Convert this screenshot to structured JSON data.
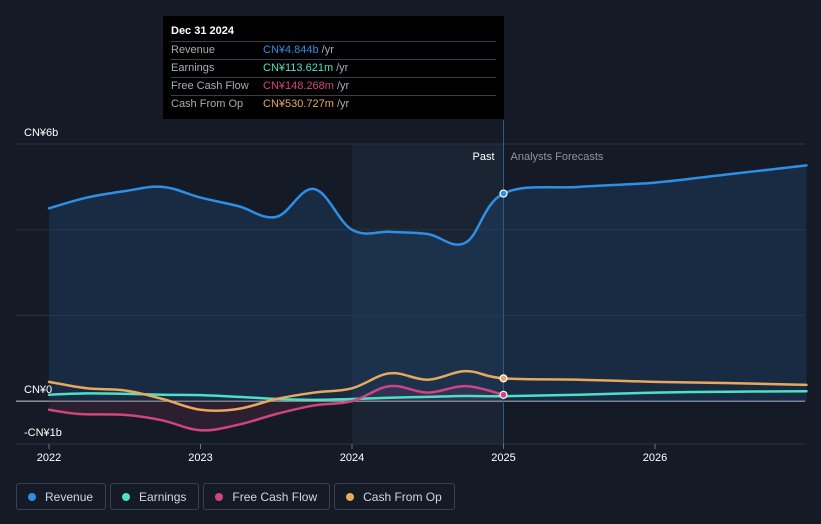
{
  "chart_data": {
    "type": "line",
    "y_labels": {
      "top": "CN¥6b",
      "zero": "CN¥0",
      "bottom": "-CN¥1b"
    },
    "ylim": [
      -1,
      6
    ],
    "x_ticks": [
      "2022",
      "2023",
      "2024",
      "2025",
      "2026"
    ],
    "past_label": "Past",
    "forecast_label": "Analysts Forecasts",
    "divider_x": 2025.0,
    "past_start_x": 2024.0,
    "series": [
      {
        "name": "Revenue",
        "color": "#2d8fe6",
        "fill": true,
        "points": [
          [
            2022,
            4.5
          ],
          [
            2022.25,
            4.75
          ],
          [
            2022.5,
            4.9
          ],
          [
            2022.75,
            5.0
          ],
          [
            2023,
            4.75
          ],
          [
            2023.25,
            4.55
          ],
          [
            2023.5,
            4.3
          ],
          [
            2023.75,
            4.95
          ],
          [
            2024,
            4.0
          ],
          [
            2024.25,
            3.95
          ],
          [
            2024.5,
            3.9
          ],
          [
            2024.75,
            3.7
          ],
          [
            2025,
            4.844
          ],
          [
            2025.5,
            5.0
          ],
          [
            2026,
            5.1
          ],
          [
            2026.5,
            5.3
          ],
          [
            2027,
            5.5
          ]
        ]
      },
      {
        "name": "Earnings",
        "color": "#4ee0c3",
        "fill": false,
        "points": [
          [
            2022,
            0.15
          ],
          [
            2022.25,
            0.18
          ],
          [
            2022.5,
            0.17
          ],
          [
            2022.75,
            0.15
          ],
          [
            2023,
            0.14
          ],
          [
            2023.25,
            0.1
          ],
          [
            2023.5,
            0.05
          ],
          [
            2023.75,
            0.03
          ],
          [
            2024,
            0.05
          ],
          [
            2024.25,
            0.08
          ],
          [
            2024.5,
            0.1
          ],
          [
            2024.75,
            0.12
          ],
          [
            2025,
            0.114
          ],
          [
            2025.5,
            0.15
          ],
          [
            2026,
            0.2
          ],
          [
            2026.5,
            0.22
          ],
          [
            2027,
            0.23
          ]
        ]
      },
      {
        "name": "Free Cash Flow",
        "color": "#d0457f",
        "fill": false,
        "points": [
          [
            2022,
            -0.2
          ],
          [
            2022.2,
            -0.3
          ],
          [
            2022.5,
            -0.32
          ],
          [
            2022.75,
            -0.45
          ],
          [
            2023,
            -0.68
          ],
          [
            2023.25,
            -0.55
          ],
          [
            2023.5,
            -0.3
          ],
          [
            2023.75,
            -0.1
          ],
          [
            2024,
            0.0
          ],
          [
            2024.25,
            0.35
          ],
          [
            2024.5,
            0.2
          ],
          [
            2024.75,
            0.35
          ],
          [
            2025,
            0.148
          ]
        ]
      },
      {
        "name": "Cash From Op",
        "color": "#e8a85e",
        "fill": false,
        "points": [
          [
            2022,
            0.45
          ],
          [
            2022.25,
            0.3
          ],
          [
            2022.5,
            0.25
          ],
          [
            2022.75,
            0.05
          ],
          [
            2023,
            -0.2
          ],
          [
            2023.25,
            -0.18
          ],
          [
            2023.5,
            0.05
          ],
          [
            2023.75,
            0.2
          ],
          [
            2024,
            0.3
          ],
          [
            2024.25,
            0.65
          ],
          [
            2024.5,
            0.5
          ],
          [
            2024.75,
            0.7
          ],
          [
            2025,
            0.531
          ],
          [
            2025.5,
            0.5
          ],
          [
            2026,
            0.45
          ],
          [
            2026.5,
            0.42
          ],
          [
            2027,
            0.38
          ]
        ]
      }
    ]
  },
  "tooltip": {
    "date": "Dec 31 2024",
    "rows": [
      {
        "label": "Revenue",
        "value": "CN¥4.844b",
        "unit": "/yr",
        "color": "#2d8fe6"
      },
      {
        "label": "Earnings",
        "value": "CN¥113.621m",
        "unit": "/yr",
        "color": "#4ee0c3"
      },
      {
        "label": "Free Cash Flow",
        "value": "CN¥148.268m",
        "unit": "/yr",
        "color": "#d0457f"
      },
      {
        "label": "Cash From Op",
        "value": "CN¥530.727m",
        "unit": "/yr",
        "color": "#e8a85e"
      }
    ]
  },
  "legend": [
    {
      "label": "Revenue",
      "color": "#2d8fe6"
    },
    {
      "label": "Earnings",
      "color": "#4ee0c3"
    },
    {
      "label": "Free Cash Flow",
      "color": "#d0457f"
    },
    {
      "label": "Cash From Op",
      "color": "#e8a85e"
    }
  ]
}
